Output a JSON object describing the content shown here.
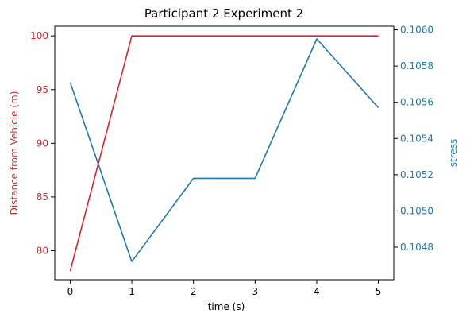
{
  "chart_data": {
    "type": "line",
    "title": "Participant 2 Experiment 2",
    "xlabel": "time (s)",
    "ylabel_left": "Distance from Vehicle (m)",
    "ylabel_right": "stress",
    "x": [
      0,
      1,
      2,
      3,
      4,
      5
    ],
    "xlim": [
      -0.25,
      5.25
    ],
    "x_ticks": [
      "0",
      "1",
      "2",
      "3",
      "4",
      "5"
    ],
    "ylim_left": [
      77.3,
      100.9
    ],
    "ylim_right": [
      0.10462,
      0.10602
    ],
    "y_ticks_left": [
      {
        "value": 80,
        "label": "80"
      },
      {
        "value": 85,
        "label": "85"
      },
      {
        "value": 90,
        "label": "90"
      },
      {
        "value": 95,
        "label": "95"
      },
      {
        "value": 100,
        "label": "100"
      }
    ],
    "y_ticks_right": [
      {
        "value": 0.1048,
        "label": "0.1048"
      },
      {
        "value": 0.105,
        "label": "0.1050"
      },
      {
        "value": 0.1052,
        "label": "0.1052"
      },
      {
        "value": 0.1054,
        "label": "0.1054"
      },
      {
        "value": 0.1056,
        "label": "0.1056"
      },
      {
        "value": 0.1058,
        "label": "0.1058"
      },
      {
        "value": 0.106,
        "label": "0.1060"
      }
    ],
    "series": [
      {
        "axis": "left",
        "color": "#d62728",
        "values": [
          78.1,
          100,
          100,
          100,
          100,
          100
        ]
      },
      {
        "axis": "right",
        "color": "#1f77b4",
        "values": [
          0.10571,
          0.10472,
          0.10518,
          0.10518,
          0.10595,
          0.10557
        ]
      }
    ],
    "grid": false,
    "left_axis_color": "#d62728",
    "right_axis_color": "#1f77b4"
  }
}
